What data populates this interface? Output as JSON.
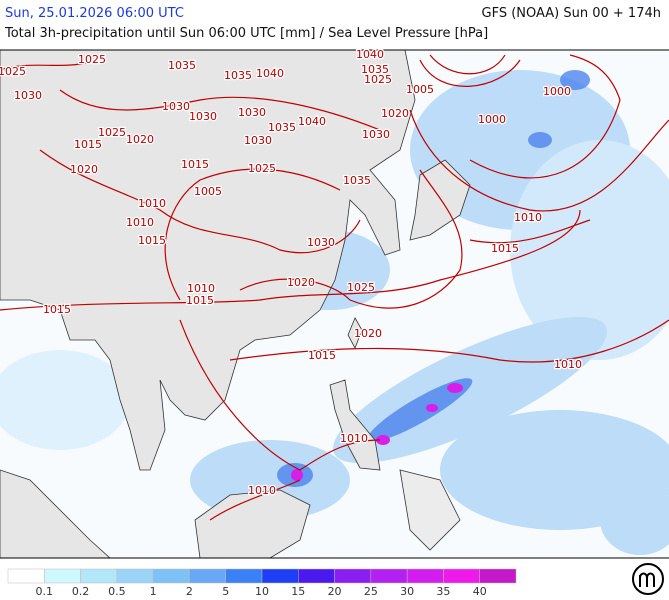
{
  "header": {
    "datetime": "Sun, 25.01.2026 06:00 UTC",
    "model": "GFS (NOAA) Sun 00 + 174h",
    "subtitle": "Total 3h-precipitation until Sun 06:00 UTC [mm] / Sea Level Pressure [hPa]"
  },
  "isobar_labels": [
    "1025",
    "1025",
    "1030",
    "1035",
    "1035",
    "1040",
    "1040",
    "1035",
    "1025",
    "1005",
    "1000",
    "1000",
    "1030",
    "1030",
    "1030",
    "1035",
    "1040",
    "1030",
    "1020",
    "1025",
    "1020",
    "1015",
    "1020",
    "1015",
    "1030",
    "1025",
    "1005",
    "1035",
    "1010",
    "1010",
    "1015",
    "1030",
    "1010",
    "1015",
    "1020",
    "1025",
    "1010",
    "1015",
    "1015",
    "1020",
    "1015",
    "1010",
    "1010",
    "1010"
  ],
  "legend": {
    "colors": [
      "#ffffff",
      "#d0f7fb",
      "#b3e6f9",
      "#9bd4f7",
      "#7ec1f6",
      "#6aa7f4",
      "#3b80f4",
      "#1d40f6",
      "#4b19f0",
      "#8a1df0",
      "#b41ff2",
      "#d41ef0",
      "#f019ec",
      "#c419c8"
    ],
    "labels": [
      "0.1",
      "0.2",
      "0.5",
      "1",
      "2",
      "5",
      "10",
      "15",
      "20",
      "25",
      "30",
      "35",
      "40"
    ]
  }
}
